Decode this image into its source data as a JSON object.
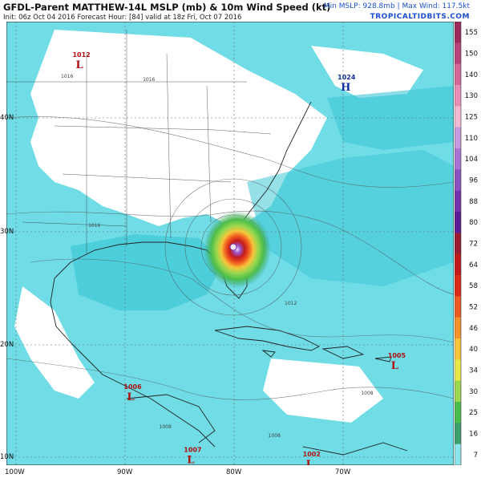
{
  "header": {
    "title": "GFDL-Parent MATTHEW-14L MSLP (mb) & 10m Wind Speed (kt)",
    "subtitle": "Init: 06z Oct 04 2016   Forecast Hour: [84]   valid at 18z Fri, Oct 07 2016",
    "stats": "Min MSLP: 928.8mb | Max Wind: 117.5kt",
    "site": "TROPICALTIDBITS.COM"
  },
  "axes": {
    "latitudes": [
      "40N",
      "30N",
      "20N",
      "10N"
    ],
    "longitudes": [
      "100W",
      "90W",
      "80W",
      "70W"
    ]
  },
  "pressure_centers": [
    {
      "type": "L",
      "value": "1012",
      "lon": -94.5,
      "lat": 45.8,
      "color": "#b01010"
    },
    {
      "type": "H",
      "value": "1024",
      "lon": -70.2,
      "lat": 43.8,
      "color": "#1030a0"
    },
    {
      "type": "L",
      "value": "1005",
      "lon": -65.6,
      "lat": 19.0,
      "color": "#b01010"
    },
    {
      "type": "L",
      "value": "1006",
      "lon": -89.8,
      "lat": 16.2,
      "color": "#b01010"
    },
    {
      "type": "L",
      "value": "1007",
      "lon": -84.3,
      "lat": 10.6,
      "color": "#b01010"
    },
    {
      "type": "L",
      "value": "1002",
      "lon": -73.4,
      "lat": 10.2,
      "color": "#b01010"
    }
  ],
  "isobar_labels": [
    {
      "value": "1016",
      "lon": -96.0,
      "lat": 44.5
    },
    {
      "value": "1016",
      "lon": -88.5,
      "lat": 44.2
    },
    {
      "value": "1016",
      "lon": -93.5,
      "lat": 31.2
    },
    {
      "value": "1012",
      "lon": -75.5,
      "lat": 24.3
    },
    {
      "value": "1008",
      "lon": -87.0,
      "lat": 13.3
    },
    {
      "value": "1008",
      "lon": -77.0,
      "lat": 12.5
    },
    {
      "value": "1008",
      "lon": -68.5,
      "lat": 16.3
    }
  ],
  "storm": {
    "name": "MATTHEW",
    "lon": -80.6,
    "lat": 28.6,
    "min_mslp_mb": 928.8,
    "max_wind_kt": 117.5
  },
  "legend": {
    "unit": "kt",
    "ticks": [
      "155",
      "150",
      "140",
      "130",
      "125",
      "110",
      "104",
      "96",
      "88",
      "80",
      "72",
      "64",
      "58",
      "52",
      "46",
      "40",
      "34",
      "30",
      "25",
      "16",
      "7"
    ],
    "colors": [
      "#9e2a5c",
      "#b8437a",
      "#d46896",
      "#e98fb6",
      "#f2b9d2",
      "#c49ae0",
      "#a874d3",
      "#8a52c0",
      "#7432ad",
      "#5d1c97",
      "#9a1c30",
      "#c21a1a",
      "#e02a1a",
      "#ef5a20",
      "#f6912a",
      "#f7c43a",
      "#e8e848",
      "#9ad84e",
      "#4cbd4c",
      "#3a9f6a",
      "#8de6ee"
    ]
  }
}
